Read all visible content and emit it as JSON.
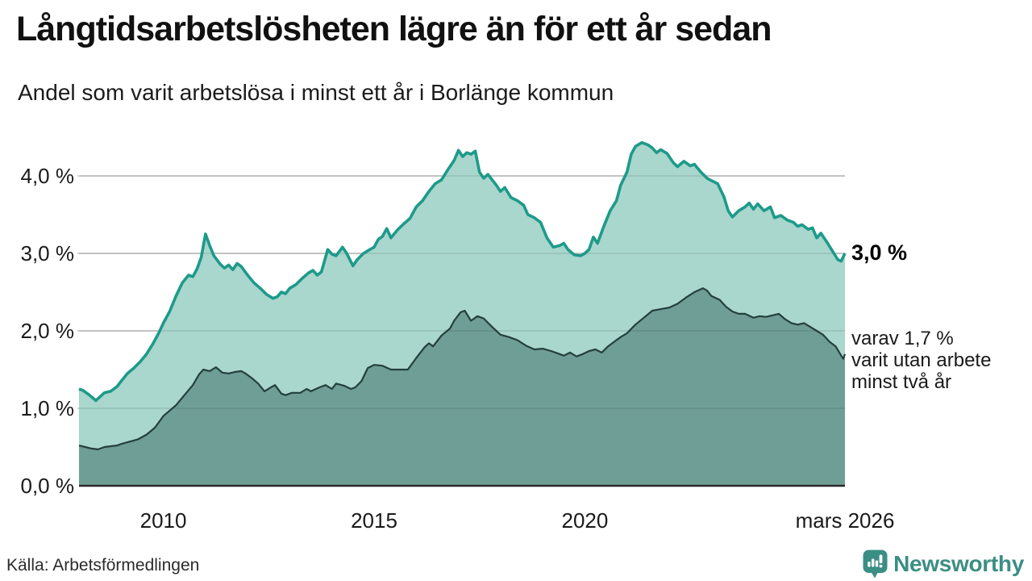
{
  "title": "Långtidsarbetslösheten lägre än för ett år sedan",
  "subtitle": "Andel som varit arbetslösa i minst ett år i Borlänge kommun",
  "source": "Källa: Arbetsförmedlingen",
  "logo": {
    "text": "Newsworthy",
    "color": "#3b8e84"
  },
  "annotations": {
    "end_value_label": "3,0 %",
    "secondary_label_lines": [
      "varav 1,7 %",
      "varit utan arbete",
      "minst två år"
    ]
  },
  "colors": {
    "series1_line": "#1d9a8a",
    "series1_fill": "#a9d6cd",
    "series2_line": "#24403c",
    "series2_fill": "#6f9e97",
    "grid": "#d4d4d4",
    "grid_overlay": "rgba(0,0,0,0.08)",
    "axis": "#2b2b2b",
    "text": "#1a1a1a"
  },
  "chart_data": {
    "type": "area",
    "title": "Långtidsarbetslösheten lägre än för ett år sedan",
    "subtitle": "Andel som varit arbetslösa i minst ett år i Borlänge kommun",
    "unit": "%",
    "x_domain": [
      2008.0,
      2026.17
    ],
    "ylim": [
      0,
      4.6
    ],
    "grid": true,
    "y_ticks": [
      {
        "value": 0,
        "label": "0,0 %"
      },
      {
        "value": 1,
        "label": "1,0 %"
      },
      {
        "value": 2,
        "label": "2,0 %"
      },
      {
        "value": 3,
        "label": "3,0 %"
      },
      {
        "value": 4,
        "label": "4,0 %"
      }
    ],
    "x_ticks": [
      {
        "value": 2010,
        "label": "2010"
      },
      {
        "value": 2015,
        "label": "2015"
      },
      {
        "value": 2020,
        "label": "2020"
      },
      {
        "value": 2026.17,
        "label": "mars 2026"
      }
    ],
    "series": [
      {
        "name": "arbetslösa minst ett år",
        "end_value": 3.0,
        "points": [
          [
            2008.0,
            1.25
          ],
          [
            2008.1,
            1.23
          ],
          [
            2008.25,
            1.17
          ],
          [
            2008.4,
            1.1
          ],
          [
            2008.5,
            1.15
          ],
          [
            2008.6,
            1.2
          ],
          [
            2008.75,
            1.22
          ],
          [
            2008.9,
            1.28
          ],
          [
            2009.0,
            1.35
          ],
          [
            2009.15,
            1.45
          ],
          [
            2009.3,
            1.52
          ],
          [
            2009.45,
            1.6
          ],
          [
            2009.6,
            1.7
          ],
          [
            2009.75,
            1.83
          ],
          [
            2009.9,
            1.98
          ],
          [
            2010.0,
            2.1
          ],
          [
            2010.15,
            2.25
          ],
          [
            2010.3,
            2.45
          ],
          [
            2010.45,
            2.62
          ],
          [
            2010.6,
            2.72
          ],
          [
            2010.7,
            2.7
          ],
          [
            2010.8,
            2.8
          ],
          [
            2010.9,
            2.95
          ],
          [
            2011.0,
            3.25
          ],
          [
            2011.1,
            3.1
          ],
          [
            2011.2,
            2.97
          ],
          [
            2011.35,
            2.86
          ],
          [
            2011.45,
            2.81
          ],
          [
            2011.55,
            2.85
          ],
          [
            2011.65,
            2.79
          ],
          [
            2011.75,
            2.87
          ],
          [
            2011.85,
            2.83
          ],
          [
            2012.0,
            2.72
          ],
          [
            2012.15,
            2.62
          ],
          [
            2012.3,
            2.55
          ],
          [
            2012.45,
            2.47
          ],
          [
            2012.6,
            2.42
          ],
          [
            2012.7,
            2.44
          ],
          [
            2012.8,
            2.5
          ],
          [
            2012.9,
            2.48
          ],
          [
            2013.0,
            2.55
          ],
          [
            2013.15,
            2.6
          ],
          [
            2013.3,
            2.68
          ],
          [
            2013.45,
            2.75
          ],
          [
            2013.55,
            2.78
          ],
          [
            2013.65,
            2.72
          ],
          [
            2013.75,
            2.76
          ],
          [
            2013.9,
            3.05
          ],
          [
            2014.0,
            2.99
          ],
          [
            2014.1,
            2.97
          ],
          [
            2014.25,
            3.08
          ],
          [
            2014.35,
            3.0
          ],
          [
            2014.5,
            2.84
          ],
          [
            2014.6,
            2.92
          ],
          [
            2014.75,
            3.0
          ],
          [
            2014.9,
            3.05
          ],
          [
            2015.0,
            3.08
          ],
          [
            2015.1,
            3.18
          ],
          [
            2015.2,
            3.22
          ],
          [
            2015.3,
            3.32
          ],
          [
            2015.4,
            3.2
          ],
          [
            2015.55,
            3.3
          ],
          [
            2015.7,
            3.38
          ],
          [
            2015.85,
            3.45
          ],
          [
            2016.0,
            3.6
          ],
          [
            2016.15,
            3.68
          ],
          [
            2016.3,
            3.8
          ],
          [
            2016.45,
            3.9
          ],
          [
            2016.6,
            3.95
          ],
          [
            2016.75,
            4.08
          ],
          [
            2016.9,
            4.2
          ],
          [
            2017.0,
            4.33
          ],
          [
            2017.1,
            4.25
          ],
          [
            2017.2,
            4.3
          ],
          [
            2017.3,
            4.28
          ],
          [
            2017.4,
            4.32
          ],
          [
            2017.5,
            4.05
          ],
          [
            2017.6,
            3.97
          ],
          [
            2017.7,
            4.02
          ],
          [
            2017.8,
            3.95
          ],
          [
            2017.9,
            3.88
          ],
          [
            2018.0,
            3.8
          ],
          [
            2018.1,
            3.85
          ],
          [
            2018.25,
            3.72
          ],
          [
            2018.4,
            3.68
          ],
          [
            2018.55,
            3.62
          ],
          [
            2018.65,
            3.5
          ],
          [
            2018.8,
            3.46
          ],
          [
            2018.95,
            3.4
          ],
          [
            2019.1,
            3.2
          ],
          [
            2019.25,
            3.08
          ],
          [
            2019.4,
            3.1
          ],
          [
            2019.5,
            3.13
          ],
          [
            2019.6,
            3.05
          ],
          [
            2019.75,
            2.98
          ],
          [
            2019.9,
            2.97
          ],
          [
            2020.0,
            3.0
          ],
          [
            2020.1,
            3.05
          ],
          [
            2020.2,
            3.21
          ],
          [
            2020.3,
            3.13
          ],
          [
            2020.45,
            3.35
          ],
          [
            2020.6,
            3.55
          ],
          [
            2020.75,
            3.68
          ],
          [
            2020.85,
            3.88
          ],
          [
            2021.0,
            4.05
          ],
          [
            2021.1,
            4.28
          ],
          [
            2021.2,
            4.38
          ],
          [
            2021.35,
            4.43
          ],
          [
            2021.5,
            4.4
          ],
          [
            2021.6,
            4.36
          ],
          [
            2021.7,
            4.3
          ],
          [
            2021.8,
            4.34
          ],
          [
            2021.95,
            4.29
          ],
          [
            2022.1,
            4.17
          ],
          [
            2022.2,
            4.12
          ],
          [
            2022.35,
            4.19
          ],
          [
            2022.5,
            4.13
          ],
          [
            2022.6,
            4.15
          ],
          [
            2022.75,
            4.05
          ],
          [
            2022.9,
            3.97
          ],
          [
            2023.0,
            3.94
          ],
          [
            2023.15,
            3.9
          ],
          [
            2023.3,
            3.73
          ],
          [
            2023.4,
            3.55
          ],
          [
            2023.5,
            3.47
          ],
          [
            2023.65,
            3.55
          ],
          [
            2023.8,
            3.6
          ],
          [
            2023.9,
            3.65
          ],
          [
            2024.0,
            3.57
          ],
          [
            2024.1,
            3.64
          ],
          [
            2024.25,
            3.55
          ],
          [
            2024.4,
            3.6
          ],
          [
            2024.5,
            3.46
          ],
          [
            2024.65,
            3.49
          ],
          [
            2024.8,
            3.43
          ],
          [
            2024.95,
            3.4
          ],
          [
            2025.05,
            3.35
          ],
          [
            2025.15,
            3.37
          ],
          [
            2025.3,
            3.31
          ],
          [
            2025.4,
            3.33
          ],
          [
            2025.5,
            3.2
          ],
          [
            2025.6,
            3.26
          ],
          [
            2025.75,
            3.14
          ],
          [
            2025.85,
            3.05
          ],
          [
            2026.0,
            2.92
          ],
          [
            2026.08,
            2.9
          ],
          [
            2026.17,
            3.0
          ]
        ]
      },
      {
        "name": "varav arbetslösa minst två år",
        "end_value": 1.7,
        "points": [
          [
            2008.0,
            0.52
          ],
          [
            2008.15,
            0.5
          ],
          [
            2008.3,
            0.48
          ],
          [
            2008.45,
            0.47
          ],
          [
            2008.6,
            0.5
          ],
          [
            2008.75,
            0.51
          ],
          [
            2008.9,
            0.52
          ],
          [
            2009.0,
            0.54
          ],
          [
            2009.2,
            0.57
          ],
          [
            2009.4,
            0.6
          ],
          [
            2009.6,
            0.66
          ],
          [
            2009.8,
            0.75
          ],
          [
            2010.0,
            0.9
          ],
          [
            2010.15,
            0.97
          ],
          [
            2010.3,
            1.04
          ],
          [
            2010.5,
            1.17
          ],
          [
            2010.7,
            1.3
          ],
          [
            2010.85,
            1.44
          ],
          [
            2010.95,
            1.5
          ],
          [
            2011.1,
            1.48
          ],
          [
            2011.25,
            1.53
          ],
          [
            2011.4,
            1.46
          ],
          [
            2011.55,
            1.45
          ],
          [
            2011.7,
            1.47
          ],
          [
            2011.85,
            1.48
          ],
          [
            2011.95,
            1.45
          ],
          [
            2012.1,
            1.39
          ],
          [
            2012.25,
            1.32
          ],
          [
            2012.4,
            1.22
          ],
          [
            2012.55,
            1.27
          ],
          [
            2012.65,
            1.3
          ],
          [
            2012.8,
            1.19
          ],
          [
            2012.9,
            1.17
          ],
          [
            2013.05,
            1.2
          ],
          [
            2013.25,
            1.2
          ],
          [
            2013.4,
            1.25
          ],
          [
            2013.5,
            1.22
          ],
          [
            2013.7,
            1.27
          ],
          [
            2013.85,
            1.3
          ],
          [
            2014.0,
            1.25
          ],
          [
            2014.1,
            1.32
          ],
          [
            2014.3,
            1.29
          ],
          [
            2014.45,
            1.25
          ],
          [
            2014.55,
            1.27
          ],
          [
            2014.7,
            1.35
          ],
          [
            2014.85,
            1.52
          ],
          [
            2015.0,
            1.56
          ],
          [
            2015.2,
            1.55
          ],
          [
            2015.4,
            1.5
          ],
          [
            2015.6,
            1.5
          ],
          [
            2015.8,
            1.5
          ],
          [
            2016.0,
            1.65
          ],
          [
            2016.2,
            1.79
          ],
          [
            2016.3,
            1.84
          ],
          [
            2016.4,
            1.8
          ],
          [
            2016.6,
            1.94
          ],
          [
            2016.8,
            2.03
          ],
          [
            2016.9,
            2.13
          ],
          [
            2017.05,
            2.24
          ],
          [
            2017.15,
            2.26
          ],
          [
            2017.3,
            2.13
          ],
          [
            2017.45,
            2.19
          ],
          [
            2017.6,
            2.16
          ],
          [
            2017.8,
            2.05
          ],
          [
            2018.0,
            1.95
          ],
          [
            2018.2,
            1.92
          ],
          [
            2018.4,
            1.88
          ],
          [
            2018.6,
            1.81
          ],
          [
            2018.8,
            1.76
          ],
          [
            2019.0,
            1.77
          ],
          [
            2019.2,
            1.74
          ],
          [
            2019.35,
            1.71
          ],
          [
            2019.5,
            1.68
          ],
          [
            2019.65,
            1.72
          ],
          [
            2019.8,
            1.67
          ],
          [
            2019.95,
            1.7
          ],
          [
            2020.1,
            1.74
          ],
          [
            2020.25,
            1.76
          ],
          [
            2020.4,
            1.72
          ],
          [
            2020.55,
            1.8
          ],
          [
            2020.7,
            1.86
          ],
          [
            2020.85,
            1.92
          ],
          [
            2021.0,
            1.97
          ],
          [
            2021.2,
            2.08
          ],
          [
            2021.4,
            2.17
          ],
          [
            2021.6,
            2.26
          ],
          [
            2021.8,
            2.28
          ],
          [
            2022.0,
            2.3
          ],
          [
            2022.2,
            2.35
          ],
          [
            2022.4,
            2.43
          ],
          [
            2022.6,
            2.5
          ],
          [
            2022.8,
            2.55
          ],
          [
            2022.9,
            2.52
          ],
          [
            2023.0,
            2.45
          ],
          [
            2023.2,
            2.4
          ],
          [
            2023.35,
            2.31
          ],
          [
            2023.5,
            2.25
          ],
          [
            2023.65,
            2.22
          ],
          [
            2023.8,
            2.22
          ],
          [
            2024.0,
            2.17
          ],
          [
            2024.15,
            2.19
          ],
          [
            2024.3,
            2.18
          ],
          [
            2024.45,
            2.2
          ],
          [
            2024.6,
            2.22
          ],
          [
            2024.75,
            2.15
          ],
          [
            2024.9,
            2.1
          ],
          [
            2025.05,
            2.08
          ],
          [
            2025.2,
            2.1
          ],
          [
            2025.35,
            2.05
          ],
          [
            2025.5,
            2.0
          ],
          [
            2025.65,
            1.95
          ],
          [
            2025.8,
            1.86
          ],
          [
            2025.95,
            1.8
          ],
          [
            2026.08,
            1.68
          ],
          [
            2026.13,
            1.64
          ],
          [
            2026.17,
            1.7
          ]
        ]
      }
    ]
  }
}
